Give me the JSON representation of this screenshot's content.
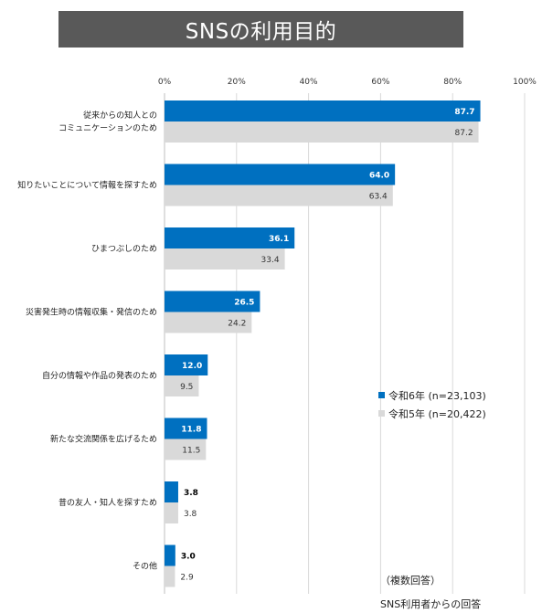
{
  "title": "SNSの利用目的",
  "footnote_multi": "（複数回答）",
  "footnote_source": "SNS利用者からの回答",
  "colors": {
    "series1": "#0070c0",
    "series2": "#d9d9d9",
    "title_bg": "#595959"
  },
  "chart_data": {
    "type": "bar",
    "orientation": "horizontal",
    "xlim": [
      0,
      100
    ],
    "x_ticks": [
      "0%",
      "20%",
      "40%",
      "60%",
      "80%",
      "100%"
    ],
    "grid": true,
    "legend_position": "center-right",
    "categories": [
      [
        "従来からの知人との",
        "コミュニケーションのため"
      ],
      [
        "知りたいことについて情報を探すため"
      ],
      [
        "ひまつぶしのため"
      ],
      [
        "災害発生時の情報収集・発信のため"
      ],
      [
        "自分の情報や作品の発表のため"
      ],
      [
        "新たな交流関係を広げるため"
      ],
      [
        "昔の友人・知人を探すため"
      ],
      [
        "その他"
      ]
    ],
    "series": [
      {
        "name": "令和6年 (n=23,103)",
        "values": [
          87.7,
          64.0,
          36.1,
          26.5,
          12.0,
          11.8,
          3.8,
          3.0
        ],
        "labels": [
          "87.7",
          "64.0",
          "36.1",
          "26.5",
          "12.0",
          "11.8",
          "3.8",
          "3.0"
        ]
      },
      {
        "name": "令和5年 (n=20,422)",
        "values": [
          87.2,
          63.4,
          33.4,
          24.2,
          9.5,
          11.5,
          3.8,
          2.9
        ],
        "labels": [
          "87.2",
          "63.4",
          "33.4",
          "24.2",
          "9.5",
          "11.5",
          "3.8",
          "2.9"
        ]
      }
    ]
  }
}
